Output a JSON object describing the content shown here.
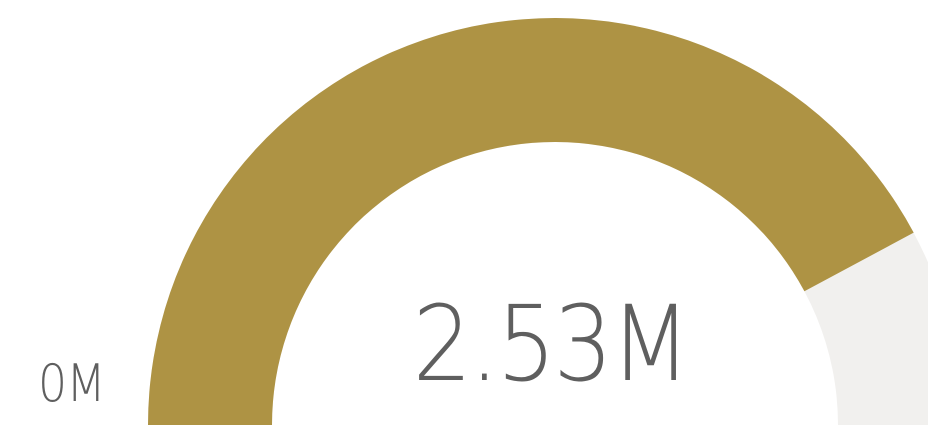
{
  "chart_data": {
    "type": "gauge",
    "min": 0,
    "max": 3.0,
    "value": 2.53,
    "unit": "M",
    "value_label": "2.53M",
    "min_label": "0M",
    "fill_color": "#ae9344",
    "track_color": "#f1f0ee",
    "text_color": "#5f5f5f"
  }
}
